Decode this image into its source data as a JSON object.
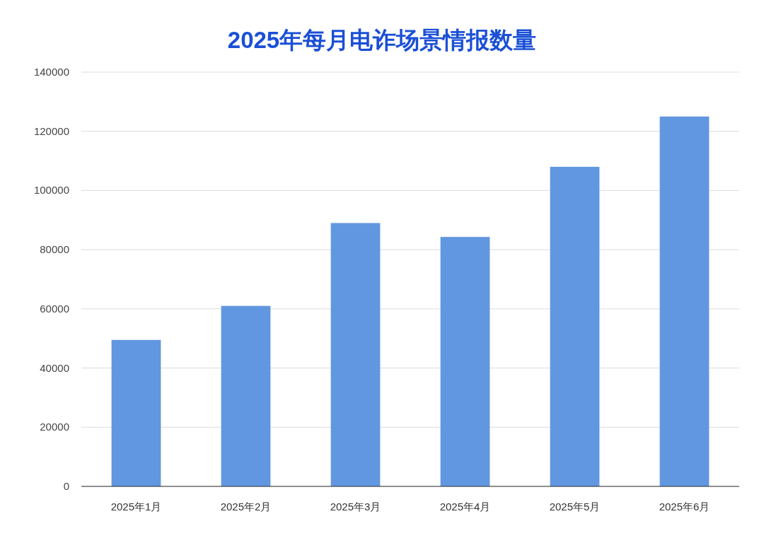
{
  "chart_data": {
    "type": "bar",
    "title": "2025年每月电诈场景情报数量",
    "categories": [
      "2025年1月",
      "2025年2月",
      "2025年3月",
      "2025年4月",
      "2025年5月",
      "2025年6月"
    ],
    "values": [
      49500,
      61000,
      89000,
      84300,
      108000,
      125000
    ],
    "color": "#6197e0",
    "ylim": [
      0,
      140000
    ],
    "yticks": [
      0,
      20000,
      40000,
      60000,
      80000,
      100000,
      120000,
      140000
    ],
    "grid": "y"
  }
}
